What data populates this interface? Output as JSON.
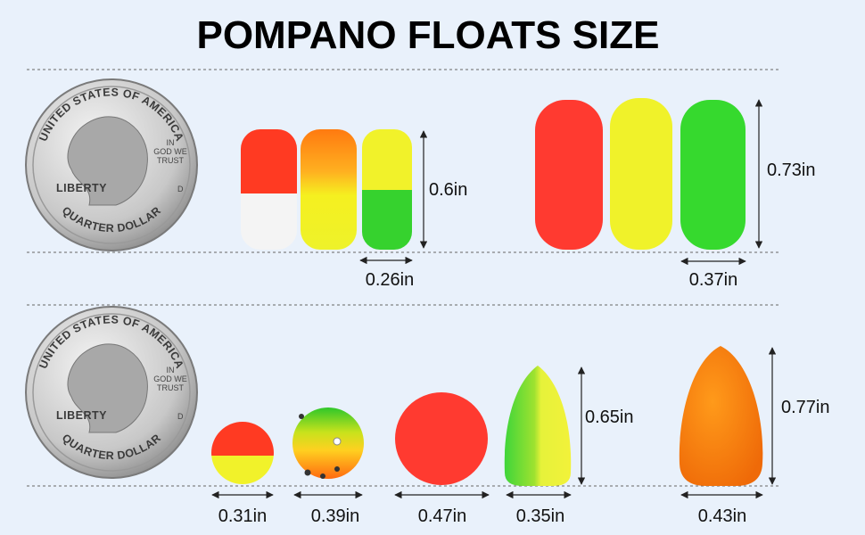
{
  "title": "POMPANO FLOATS SIZE",
  "coin": {
    "top": "UNITED STATES OF AMERICA",
    "left": "LIBERTY",
    "motto": [
      "IN",
      "GOD WE",
      "TRUST"
    ],
    "mint": "D",
    "bottom": "QUARTER DOLLAR"
  },
  "rows": [
    {
      "heights": [
        "0.6in",
        "0.73in"
      ],
      "widths": [
        "0.26in",
        "0.37in"
      ]
    },
    {
      "heights": [
        "0.65in",
        "0.77in"
      ],
      "widths": [
        "0.31in",
        "0.39in",
        "0.47in",
        "0.35in",
        "0.43in"
      ]
    }
  ]
}
